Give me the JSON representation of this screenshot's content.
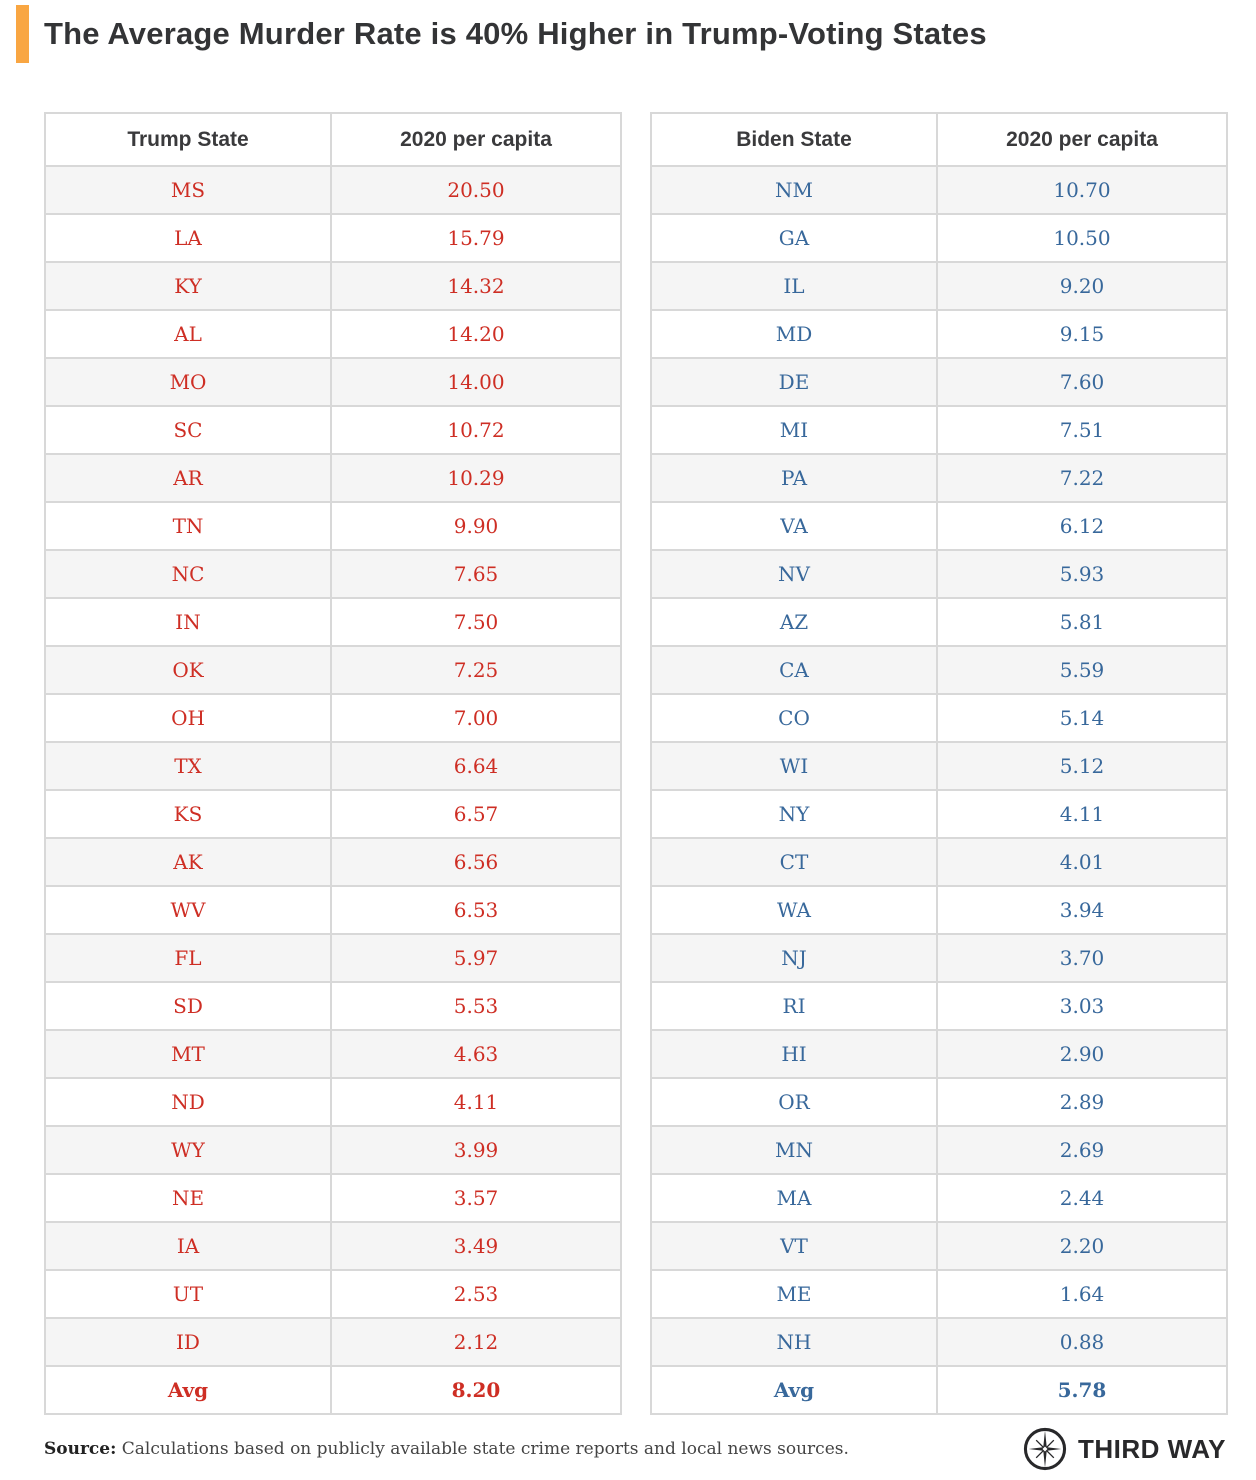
{
  "accent_color": "#F9A642",
  "colors": {
    "title_text": "#333436",
    "header_text": "#3A3A3C",
    "trump_text": "#CE2E24",
    "biden_text": "#38689B",
    "row_stripe": "#F5F5F5",
    "grid_line": "#D8D8D8"
  },
  "chart_data": {
    "type": "table",
    "title": "The Average Murder Rate is 40% Higher in Trump-Voting States",
    "tables": [
      {
        "id": "trump",
        "columns": [
          "Trump State",
          "2020 per capita"
        ],
        "text_color": "#CE2E24",
        "rows": [
          [
            "MS",
            "20.50"
          ],
          [
            "LA",
            "15.79"
          ],
          [
            "KY",
            "14.32"
          ],
          [
            "AL",
            "14.20"
          ],
          [
            "MO",
            "14.00"
          ],
          [
            "SC",
            "10.72"
          ],
          [
            "AR",
            "10.29"
          ],
          [
            "TN",
            "9.90"
          ],
          [
            "NC",
            "7.65"
          ],
          [
            "IN",
            "7.50"
          ],
          [
            "OK",
            "7.25"
          ],
          [
            "OH",
            "7.00"
          ],
          [
            "TX",
            "6.64"
          ],
          [
            "KS",
            "6.57"
          ],
          [
            "AK",
            "6.56"
          ],
          [
            "WV",
            "6.53"
          ],
          [
            "FL",
            "5.97"
          ],
          [
            "SD",
            "5.53"
          ],
          [
            "MT",
            "4.63"
          ],
          [
            "ND",
            "4.11"
          ],
          [
            "WY",
            "3.99"
          ],
          [
            "NE",
            "3.57"
          ],
          [
            "IA",
            "3.49"
          ],
          [
            "UT",
            "2.53"
          ],
          [
            "ID",
            "2.12"
          ]
        ],
        "footer_row": [
          "Avg",
          "8.20"
        ]
      },
      {
        "id": "biden",
        "columns": [
          "Biden State",
          "2020 per capita"
        ],
        "text_color": "#38689B",
        "rows": [
          [
            "NM",
            "10.70"
          ],
          [
            "GA",
            "10.50"
          ],
          [
            "IL",
            "9.20"
          ],
          [
            "MD",
            "9.15"
          ],
          [
            "DE",
            "7.60"
          ],
          [
            "MI",
            "7.51"
          ],
          [
            "PA",
            "7.22"
          ],
          [
            "VA",
            "6.12"
          ],
          [
            "NV",
            "5.93"
          ],
          [
            "AZ",
            "5.81"
          ],
          [
            "CA",
            "5.59"
          ],
          [
            "CO",
            "5.14"
          ],
          [
            "WI",
            "5.12"
          ],
          [
            "NY",
            "4.11"
          ],
          [
            "CT",
            "4.01"
          ],
          [
            "WA",
            "3.94"
          ],
          [
            "NJ",
            "3.70"
          ],
          [
            "RI",
            "3.03"
          ],
          [
            "HI",
            "2.90"
          ],
          [
            "OR",
            "2.89"
          ],
          [
            "MN",
            "2.69"
          ],
          [
            "MA",
            "2.44"
          ],
          [
            "VT",
            "2.20"
          ],
          [
            "ME",
            "1.64"
          ],
          [
            "NH",
            "0.88"
          ]
        ],
        "footer_row": [
          "Avg",
          "5.78"
        ]
      }
    ]
  },
  "footer": {
    "source_label": "Source:",
    "source_text": " Calculations based on publicly available state crime reports and local news sources.",
    "brand": "THIRD WAY",
    "logo_icon": "compass-icon"
  }
}
